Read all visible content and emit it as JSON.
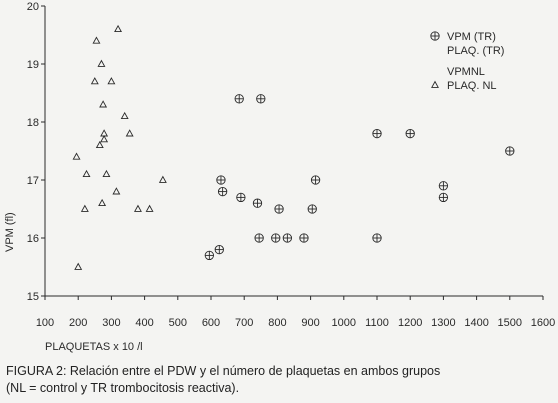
{
  "chart_data": {
    "type": "scatter",
    "xlabel": "PLAQUETAS x 10 /l",
    "ylabel": "VPM (fl)",
    "xlim": [
      100,
      1600
    ],
    "ylim": [
      15,
      20
    ],
    "xticks": [
      100,
      200,
      300,
      400,
      500,
      600,
      700,
      800,
      900,
      1000,
      1100,
      1200,
      1300,
      1400,
      1500,
      1600
    ],
    "yticks": [
      15,
      16,
      17,
      18,
      19,
      20
    ],
    "grid": false,
    "legend_position": "top-right",
    "series": [
      {
        "name": "VPM (TR) PLAQ. (TR)",
        "legend_lines": [
          "VPM (TR)",
          "PLAQ. (TR)"
        ],
        "marker": "circle-plus",
        "points": [
          [
            595,
            15.7
          ],
          [
            625,
            15.8
          ],
          [
            630,
            17.0
          ],
          [
            635,
            16.8
          ],
          [
            685,
            18.4
          ],
          [
            690,
            16.7
          ],
          [
            740,
            16.6
          ],
          [
            745,
            16.0
          ],
          [
            750,
            18.4
          ],
          [
            795,
            16.0
          ],
          [
            805,
            16.5
          ],
          [
            830,
            16.0
          ],
          [
            880,
            16.0
          ],
          [
            905,
            16.5
          ],
          [
            915,
            17.0
          ],
          [
            1100,
            17.8
          ],
          [
            1100,
            16.0
          ],
          [
            1200,
            17.8
          ],
          [
            1300,
            16.9
          ],
          [
            1300,
            16.7
          ],
          [
            1500,
            17.5
          ]
        ]
      },
      {
        "name": "VPMNL PLAQ. NL",
        "legend_lines": [
          "VPMNL",
          "PLAQ. NL"
        ],
        "marker": "triangle",
        "points": [
          [
            195,
            17.4
          ],
          [
            200,
            15.5
          ],
          [
            220,
            16.5
          ],
          [
            225,
            17.1
          ],
          [
            250,
            18.7
          ],
          [
            255,
            19.4
          ],
          [
            265,
            17.6
          ],
          [
            270,
            19.0
          ],
          [
            272,
            16.6
          ],
          [
            275,
            18.3
          ],
          [
            278,
            17.8
          ],
          [
            278,
            17.7
          ],
          [
            285,
            17.1
          ],
          [
            300,
            18.7
          ],
          [
            315,
            16.8
          ],
          [
            320,
            19.6
          ],
          [
            340,
            18.1
          ],
          [
            355,
            17.8
          ],
          [
            380,
            16.5
          ],
          [
            415,
            16.5
          ],
          [
            455,
            17.0
          ]
        ]
      }
    ]
  },
  "caption": {
    "line1": "FIGURA 2:   Relación entre el PDW y el número de plaquetas en ambos grupos",
    "line2": "(NL = control  y TR trombocitosis reactiva)."
  },
  "colors": {
    "ink": "#2a2a2a",
    "background": "#f4f4f2"
  }
}
